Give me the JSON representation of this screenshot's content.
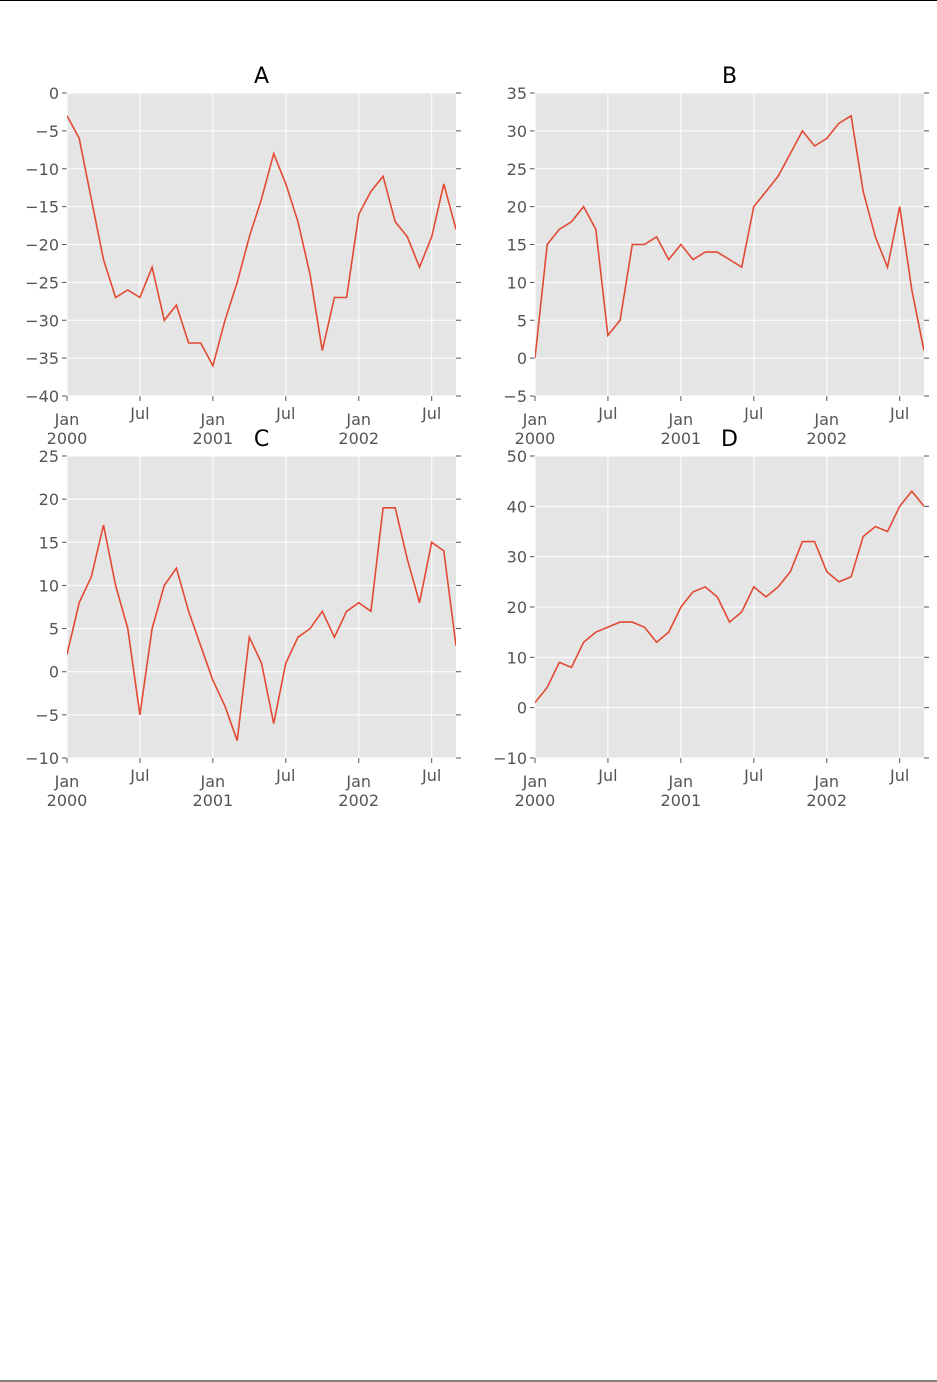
{
  "chart_data": [
    {
      "type": "line",
      "title": "A",
      "x": [
        "2000-01",
        "2000-02",
        "2000-03",
        "2000-04",
        "2000-05",
        "2000-06",
        "2000-07",
        "2000-08",
        "2000-09",
        "2000-10",
        "2000-11",
        "2000-12",
        "2001-01",
        "2001-02",
        "2001-03",
        "2001-04",
        "2001-05",
        "2001-06",
        "2001-07",
        "2001-08",
        "2001-09",
        "2001-10",
        "2001-11",
        "2001-12",
        "2002-01",
        "2002-02",
        "2002-03",
        "2002-04",
        "2002-05",
        "2002-06",
        "2002-07",
        "2002-08",
        "2002-09"
      ],
      "values": [
        -3,
        -6,
        -14,
        -22,
        -27,
        -26,
        -27,
        -23,
        -30,
        -28,
        -33,
        -33,
        -36,
        -30,
        -25,
        -19,
        -14,
        -8,
        -12,
        -17,
        -24,
        -34,
        -27,
        -27,
        -16,
        -13,
        -11,
        -17,
        -19,
        -23,
        -19,
        -12,
        -18
      ],
      "color": "#e24a33",
      "grid": true,
      "xlim": [
        "2000-01",
        "2002-09"
      ],
      "xticks": [
        {
          "value": "2000-01",
          "label": "Jan\n2000"
        },
        {
          "value": "2000-07",
          "label": "Jul"
        },
        {
          "value": "2001-01",
          "label": "Jan\n2001"
        },
        {
          "value": "2001-07",
          "label": "Jul"
        },
        {
          "value": "2002-01",
          "label": "Jan\n2002"
        },
        {
          "value": "2002-07",
          "label": "Jul"
        }
      ],
      "ylim": [
        -40,
        0
      ],
      "yticks": [
        0,
        {
          "value": -5,
          "label": "−5"
        },
        {
          "value": -10,
          "label": "−10"
        },
        {
          "value": -15,
          "label": "−15"
        },
        {
          "value": -20,
          "label": "−20"
        },
        {
          "value": -25,
          "label": "−25"
        },
        {
          "value": -30,
          "label": "−30"
        },
        {
          "value": -35,
          "label": "−35"
        },
        {
          "value": -40,
          "label": "−40"
        }
      ]
    },
    {
      "type": "line",
      "title": "B",
      "x": [
        "2000-01",
        "2000-02",
        "2000-03",
        "2000-04",
        "2000-05",
        "2000-06",
        "2000-07",
        "2000-08",
        "2000-09",
        "2000-10",
        "2000-11",
        "2000-12",
        "2001-01",
        "2001-02",
        "2001-03",
        "2001-04",
        "2001-05",
        "2001-06",
        "2001-07",
        "2001-08",
        "2001-09",
        "2001-10",
        "2001-11",
        "2001-12",
        "2002-01",
        "2002-02",
        "2002-03",
        "2002-04",
        "2002-05",
        "2002-06",
        "2002-07",
        "2002-08",
        "2002-09"
      ],
      "values": [
        0,
        15,
        17,
        18,
        20,
        17,
        3,
        5,
        15,
        15,
        16,
        13,
        15,
        13,
        14,
        14,
        13,
        12,
        20,
        22,
        24,
        27,
        30,
        28,
        29,
        31,
        32,
        22,
        16,
        12,
        20,
        9,
        1
      ],
      "color": "#e24a33",
      "grid": true,
      "xlim": [
        "2000-01",
        "2002-09"
      ],
      "xticks": [
        {
          "value": "2000-01",
          "label": "Jan\n2000"
        },
        {
          "value": "2000-07",
          "label": "Jul"
        },
        {
          "value": "2001-01",
          "label": "Jan\n2001"
        },
        {
          "value": "2001-07",
          "label": "Jul"
        },
        {
          "value": "2002-01",
          "label": "Jan\n2002"
        },
        {
          "value": "2002-07",
          "label": "Jul"
        }
      ],
      "ylim": [
        -5,
        35
      ],
      "yticks": [
        {
          "value": -5,
          "label": "−5"
        },
        0,
        5,
        10,
        15,
        20,
        25,
        30,
        35
      ]
    },
    {
      "type": "line",
      "title": "C",
      "x": [
        "2000-01",
        "2000-02",
        "2000-03",
        "2000-04",
        "2000-05",
        "2000-06",
        "2000-07",
        "2000-08",
        "2000-09",
        "2000-10",
        "2000-11",
        "2000-12",
        "2001-01",
        "2001-02",
        "2001-03",
        "2001-04",
        "2001-05",
        "2001-06",
        "2001-07",
        "2001-08",
        "2001-09",
        "2001-10",
        "2001-11",
        "2001-12",
        "2002-01",
        "2002-02",
        "2002-03",
        "2002-04",
        "2002-05",
        "2002-06",
        "2002-07",
        "2002-08",
        "2002-09"
      ],
      "values": [
        2,
        8,
        11,
        17,
        10,
        5,
        -5,
        5,
        10,
        12,
        7,
        3,
        -1,
        -4,
        -8,
        4,
        1,
        -6,
        1,
        4,
        5,
        7,
        4,
        7,
        8,
        7,
        19,
        19,
        13,
        8,
        15,
        14,
        3
      ],
      "color": "#e24a33",
      "grid": true,
      "xlim": [
        "2000-01",
        "2002-09"
      ],
      "xticks": [
        {
          "value": "2000-01",
          "label": "Jan\n2000"
        },
        {
          "value": "2000-07",
          "label": "Jul"
        },
        {
          "value": "2001-01",
          "label": "Jan\n2001"
        },
        {
          "value": "2001-07",
          "label": "Jul"
        },
        {
          "value": "2002-01",
          "label": "Jan\n2002"
        },
        {
          "value": "2002-07",
          "label": "Jul"
        }
      ],
      "ylim": [
        -10,
        25
      ],
      "yticks": [
        {
          "value": -10,
          "label": "−10"
        },
        {
          "value": -5,
          "label": "−5"
        },
        0,
        5,
        10,
        15,
        20,
        25
      ]
    },
    {
      "type": "line",
      "title": "D",
      "x": [
        "2000-01",
        "2000-02",
        "2000-03",
        "2000-04",
        "2000-05",
        "2000-06",
        "2000-07",
        "2000-08",
        "2000-09",
        "2000-10",
        "2000-11",
        "2000-12",
        "2001-01",
        "2001-02",
        "2001-03",
        "2001-04",
        "2001-05",
        "2001-06",
        "2001-07",
        "2001-08",
        "2001-09",
        "2001-10",
        "2001-11",
        "2001-12",
        "2002-01",
        "2002-02",
        "2002-03",
        "2002-04",
        "2002-05",
        "2002-06",
        "2002-07",
        "2002-08",
        "2002-09"
      ],
      "values": [
        1,
        4,
        9,
        8,
        13,
        15,
        16,
        17,
        17,
        16,
        13,
        15,
        20,
        23,
        24,
        22,
        17,
        19,
        24,
        22,
        24,
        27,
        33,
        33,
        27,
        25,
        26,
        34,
        36,
        35,
        40,
        43,
        40
      ],
      "color": "#e24a33",
      "grid": true,
      "xlim": [
        "2000-01",
        "2002-09"
      ],
      "xticks": [
        {
          "value": "2000-01",
          "label": "Jan\n2000"
        },
        {
          "value": "2000-07",
          "label": "Jul"
        },
        {
          "value": "2001-01",
          "label": "Jan\n2001"
        },
        {
          "value": "2001-07",
          "label": "Jul"
        },
        {
          "value": "2002-01",
          "label": "Jan\n2002"
        },
        {
          "value": "2002-07",
          "label": "Jul"
        }
      ],
      "ylim": [
        -10,
        50
      ],
      "yticks": [
        {
          "value": -10,
          "label": "−10"
        },
        0,
        10,
        20,
        30,
        40,
        50
      ]
    }
  ]
}
